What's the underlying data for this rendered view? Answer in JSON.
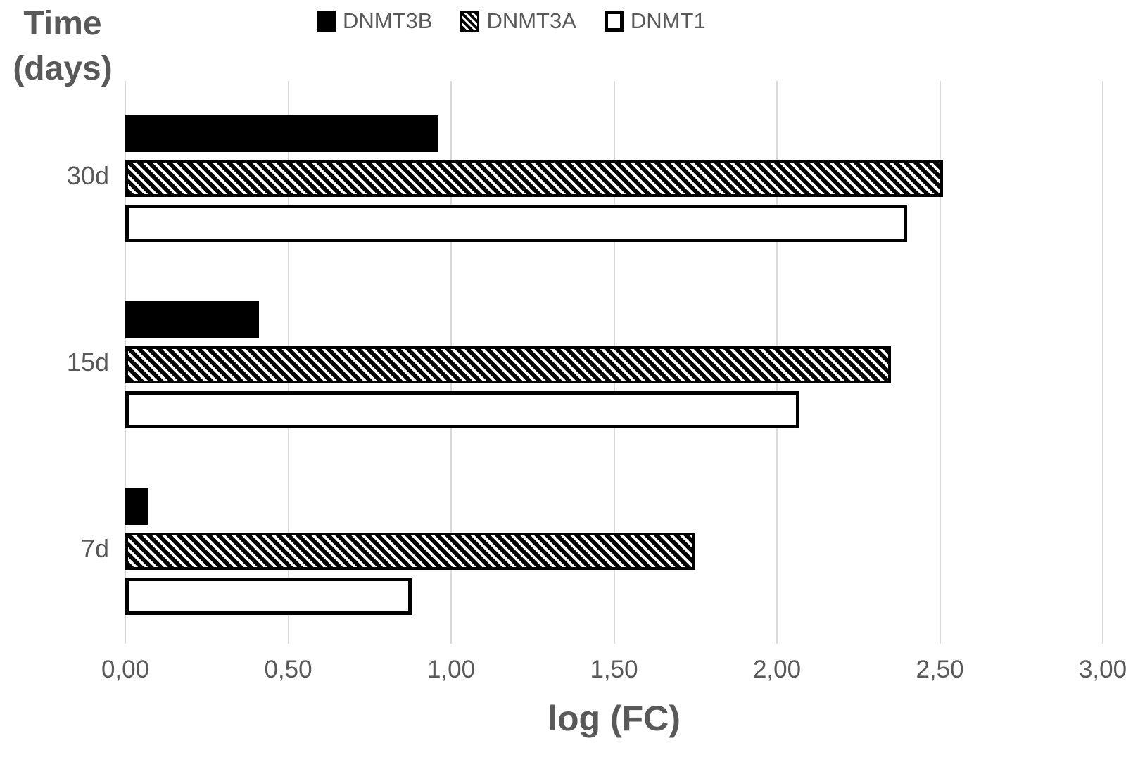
{
  "y_axis_title": {
    "line1": "Time",
    "line2": "(days)"
  },
  "x_axis_title": "log (FC)",
  "legend": {
    "items": [
      {
        "label": "DNMT3B",
        "marker": "solid-black-square"
      },
      {
        "label": "DNMT3A",
        "marker": "diagonal-hatch-square"
      },
      {
        "label": "DNMT1",
        "marker": "white-outlined-square"
      }
    ]
  },
  "colors": {
    "text": "#595959",
    "gridline": "#d9d9d9",
    "bar_fill": "#000000",
    "background": "#ffffff"
  },
  "chart_data": {
    "type": "bar",
    "orientation": "horizontal",
    "title": "",
    "xlabel": "log (FC)",
    "ylabel": "Time (days)",
    "categories": [
      "30d",
      "15d",
      "7d"
    ],
    "series": [
      {
        "name": "DNMT3B",
        "style": "solid-black",
        "values": [
          0.96,
          0.41,
          0.07
        ]
      },
      {
        "name": "DNMT3A",
        "style": "diagonal-hatch",
        "values": [
          2.51,
          2.35,
          1.75
        ]
      },
      {
        "name": "DNMT1",
        "style": "white-outline",
        "values": [
          2.4,
          2.07,
          0.88
        ]
      }
    ],
    "xlim": [
      0,
      3
    ],
    "xtick_values": [
      0,
      0.5,
      1.0,
      1.5,
      2.0,
      2.5,
      3.0
    ],
    "xtick_labels": [
      "0,00",
      "0,50",
      "1,00",
      "1,50",
      "2,00",
      "2,50",
      "3,00"
    ],
    "grid": "vertical-gridlines-on",
    "legend_position": "top-center",
    "decimal_separator": "comma"
  }
}
